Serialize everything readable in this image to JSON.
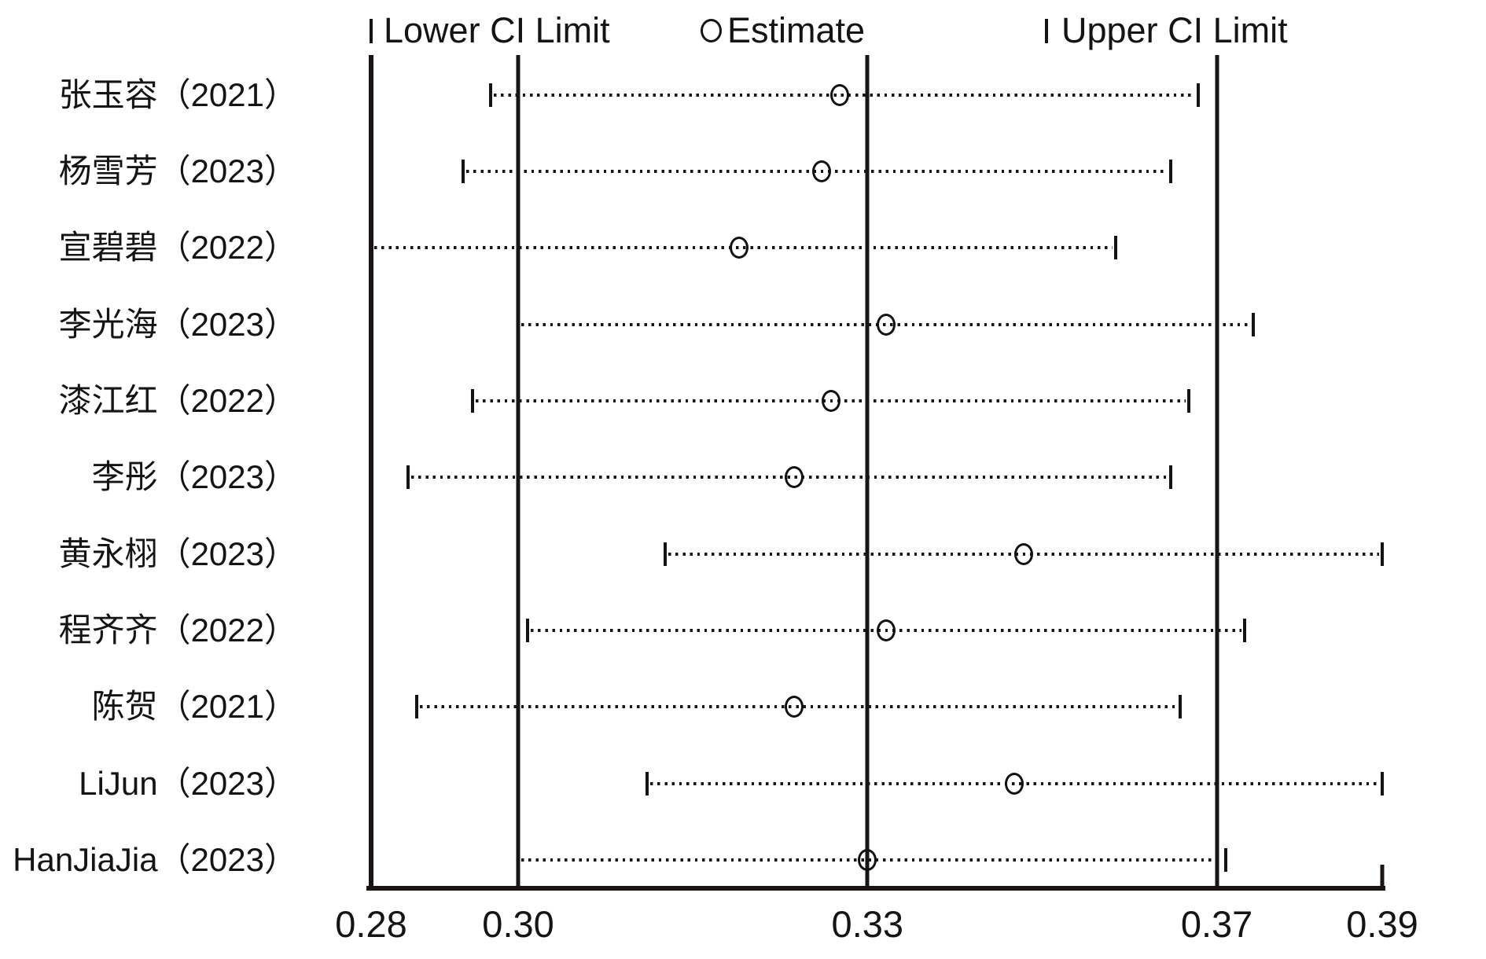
{
  "chart_data": {
    "type": "scatter",
    "variant": "forest-ci-sensitivity-plot",
    "title": "",
    "xlabel": "",
    "ylabel": "",
    "legend": [
      {
        "marker": "ci-tick",
        "label": "Lower CI Limit"
      },
      {
        "marker": "circle",
        "label": "Estimate"
      },
      {
        "marker": "ci-tick",
        "label": "Upper CI Limit"
      }
    ],
    "legend_position": "top",
    "grid": false,
    "x_axis": {
      "range": [
        0.28,
        0.39
      ],
      "ticks": [
        {
          "value": 0.28,
          "label": "0.28"
        },
        {
          "value": 0.296,
          "label": "0.30"
        },
        {
          "value": 0.334,
          "label": "0.33"
        },
        {
          "value": 0.372,
          "label": "0.37"
        },
        {
          "value": 0.39,
          "label": "0.39"
        }
      ]
    },
    "reference_lines": {
      "lower_ci": 0.296,
      "estimate": 0.334,
      "upper_ci": 0.372
    },
    "studies": [
      {
        "label": "张玉容（2021）",
        "lower": 0.293,
        "estimate": 0.331,
        "upper": 0.37
      },
      {
        "label": "杨雪芳（2023）",
        "lower": 0.29,
        "estimate": 0.329,
        "upper": 0.367
      },
      {
        "label": "宣碧碧（2022）",
        "lower": 0.28,
        "estimate": 0.32,
        "upper": 0.361
      },
      {
        "label": "李光海（2023）",
        "lower": 0.296,
        "estimate": 0.336,
        "upper": 0.376
      },
      {
        "label": "漆江红（2022）",
        "lower": 0.291,
        "estimate": 0.33,
        "upper": 0.369
      },
      {
        "label": "李彤（2023）",
        "lower": 0.284,
        "estimate": 0.326,
        "upper": 0.367
      },
      {
        "label": "黄永栩（2023）",
        "lower": 0.312,
        "estimate": 0.351,
        "upper": 0.39
      },
      {
        "label": "程齐齐（2022）",
        "lower": 0.297,
        "estimate": 0.336,
        "upper": 0.375
      },
      {
        "label": "陈贺（2021）",
        "lower": 0.285,
        "estimate": 0.326,
        "upper": 0.368
      },
      {
        "label": "LiJun（2023）",
        "lower": 0.31,
        "estimate": 0.35,
        "upper": 0.39
      },
      {
        "label": "HanJiaJia（2023）",
        "lower": 0.296,
        "estimate": 0.334,
        "upper": 0.373
      }
    ],
    "colors": {
      "foreground": "#141414",
      "background": "#ffffff"
    }
  }
}
